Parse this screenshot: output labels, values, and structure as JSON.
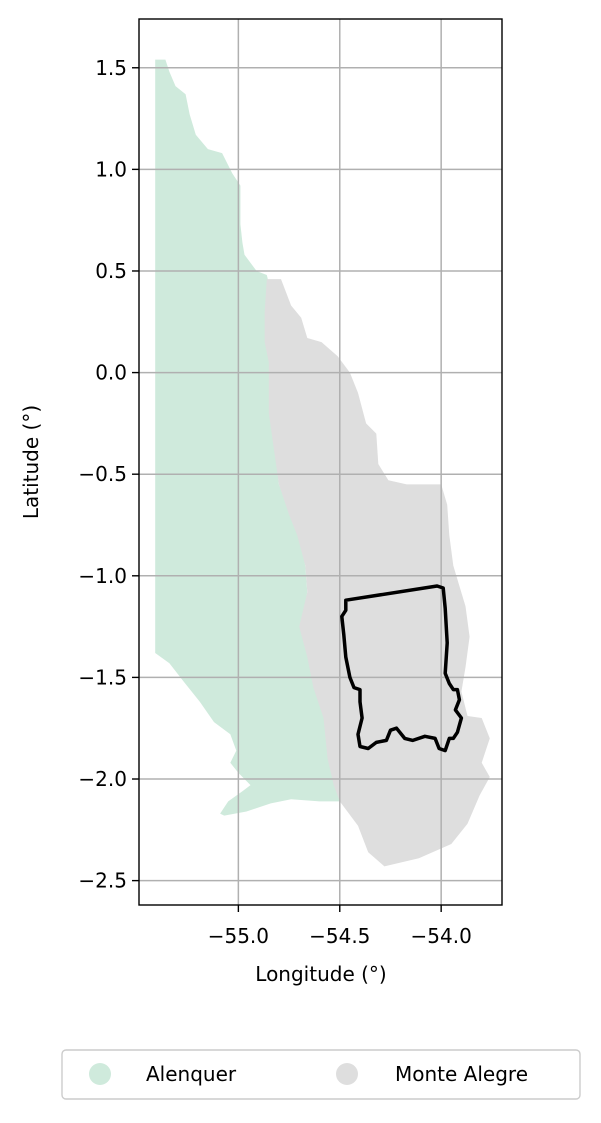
{
  "chart_data": {
    "type": "map",
    "xlabel": "Longitude (°)",
    "ylabel": "Latitude (°)",
    "xlim": [
      -55.49,
      -53.7
    ],
    "ylim": [
      -2.62,
      1.74
    ],
    "grid": true,
    "xticks": [
      {
        "value": -55.0,
        "label": "−55.0"
      },
      {
        "value": -54.5,
        "label": "−54.5"
      },
      {
        "value": -54.0,
        "label": "−54.0"
      }
    ],
    "yticks": [
      {
        "value": 1.5,
        "label": "1.5"
      },
      {
        "value": 1.0,
        "label": "1.0"
      },
      {
        "value": 0.5,
        "label": "0.5"
      },
      {
        "value": 0.0,
        "label": "0.0"
      },
      {
        "value": -0.5,
        "label": "−0.5"
      },
      {
        "value": -1.0,
        "label": "−1.0"
      },
      {
        "value": -1.5,
        "label": "−1.5"
      },
      {
        "value": -2.0,
        "label": "−2.0"
      },
      {
        "value": -2.5,
        "label": "−2.5"
      }
    ],
    "legend_position": "below",
    "regions": [
      {
        "name": "Alenquer",
        "color": "#cfeadc",
        "polygon": [
          [
            -55.41,
            1.54
          ],
          [
            -55.36,
            1.54
          ],
          [
            -55.34,
            1.48
          ],
          [
            -55.31,
            1.41
          ],
          [
            -55.26,
            1.37
          ],
          [
            -55.24,
            1.27
          ],
          [
            -55.21,
            1.17
          ],
          [
            -55.15,
            1.1
          ],
          [
            -55.08,
            1.08
          ],
          [
            -55.03,
            0.98
          ],
          [
            -54.99,
            0.92
          ],
          [
            -54.99,
            0.73
          ],
          [
            -54.98,
            0.64
          ],
          [
            -54.97,
            0.58
          ],
          [
            -54.91,
            0.5
          ],
          [
            -54.86,
            0.48
          ],
          [
            -54.84,
            0.4
          ],
          [
            -54.86,
            0.3
          ],
          [
            -54.86,
            0.15
          ],
          [
            -54.84,
            0.05
          ],
          [
            -54.84,
            -0.2
          ],
          [
            -54.8,
            -0.55
          ],
          [
            -54.74,
            -0.7
          ],
          [
            -54.7,
            -0.8
          ],
          [
            -54.67,
            -0.95
          ],
          [
            -54.66,
            -1.08
          ],
          [
            -54.69,
            -1.25
          ],
          [
            -54.65,
            -1.4
          ],
          [
            -54.61,
            -1.55
          ],
          [
            -54.56,
            -1.7
          ],
          [
            -54.55,
            -1.9
          ],
          [
            -54.52,
            -2.03
          ],
          [
            -54.49,
            -2.11
          ],
          [
            -54.6,
            -2.11
          ],
          [
            -54.74,
            -2.1
          ],
          [
            -54.84,
            -2.12
          ],
          [
            -54.96,
            -2.16
          ],
          [
            -55.07,
            -2.18
          ],
          [
            -55.09,
            -2.17
          ],
          [
            -55.05,
            -2.11
          ],
          [
            -54.98,
            -2.06
          ],
          [
            -54.94,
            -2.03
          ],
          [
            -55.0,
            -1.97
          ],
          [
            -55.04,
            -1.92
          ],
          [
            -55.01,
            -1.86
          ],
          [
            -55.04,
            -1.78
          ],
          [
            -55.12,
            -1.72
          ],
          [
            -55.19,
            -1.62
          ],
          [
            -55.27,
            -1.52
          ],
          [
            -55.34,
            -1.43
          ],
          [
            -55.41,
            -1.38
          ]
        ]
      },
      {
        "name": "Monte Alegre",
        "color": "#dedede",
        "polygon": [
          [
            -54.86,
            0.46
          ],
          [
            -54.79,
            0.46
          ],
          [
            -54.74,
            0.33
          ],
          [
            -54.69,
            0.27
          ],
          [
            -54.66,
            0.17
          ],
          [
            -54.59,
            0.15
          ],
          [
            -54.51,
            0.08
          ],
          [
            -54.45,
            0.0
          ],
          [
            -54.41,
            -0.1
          ],
          [
            -54.37,
            -0.25
          ],
          [
            -54.32,
            -0.3
          ],
          [
            -54.31,
            -0.45
          ],
          [
            -54.26,
            -0.53
          ],
          [
            -54.17,
            -0.55
          ],
          [
            -54.08,
            -0.55
          ],
          [
            -54.0,
            -0.55
          ],
          [
            -53.97,
            -0.65
          ],
          [
            -53.96,
            -0.8
          ],
          [
            -53.94,
            -0.95
          ],
          [
            -53.91,
            -1.05
          ],
          [
            -53.88,
            -1.15
          ],
          [
            -53.86,
            -1.3
          ],
          [
            -53.88,
            -1.45
          ],
          [
            -53.9,
            -1.57
          ],
          [
            -53.87,
            -1.69
          ],
          [
            -53.8,
            -1.7
          ],
          [
            -53.76,
            -1.8
          ],
          [
            -53.8,
            -1.92
          ],
          [
            -53.76,
            -1.99
          ],
          [
            -53.81,
            -2.08
          ],
          [
            -53.87,
            -2.22
          ],
          [
            -53.95,
            -2.32
          ],
          [
            -54.11,
            -2.39
          ],
          [
            -54.28,
            -2.43
          ],
          [
            -54.36,
            -2.36
          ],
          [
            -54.41,
            -2.23
          ],
          [
            -54.5,
            -2.11
          ],
          [
            -54.53,
            -2.03
          ],
          [
            -54.56,
            -1.9
          ],
          [
            -54.58,
            -1.7
          ],
          [
            -54.63,
            -1.55
          ],
          [
            -54.66,
            -1.4
          ],
          [
            -54.7,
            -1.25
          ],
          [
            -54.66,
            -1.08
          ],
          [
            -54.67,
            -0.95
          ],
          [
            -54.71,
            -0.8
          ],
          [
            -54.75,
            -0.7
          ],
          [
            -54.8,
            -0.55
          ],
          [
            -54.85,
            -0.2
          ],
          [
            -54.85,
            0.05
          ],
          [
            -54.87,
            0.15
          ],
          [
            -54.87,
            0.3
          ]
        ]
      }
    ],
    "outline": {
      "polygon": [
        [
          -54.47,
          -1.12
        ],
        [
          -54.02,
          -1.05
        ],
        [
          -53.99,
          -1.06
        ],
        [
          -53.98,
          -1.16
        ],
        [
          -53.97,
          -1.33
        ],
        [
          -53.98,
          -1.48
        ],
        [
          -53.96,
          -1.53
        ],
        [
          -53.94,
          -1.56
        ],
        [
          -53.92,
          -1.56
        ],
        [
          -53.91,
          -1.61
        ],
        [
          -53.93,
          -1.66
        ],
        [
          -53.9,
          -1.7
        ],
        [
          -53.92,
          -1.77
        ],
        [
          -53.94,
          -1.8
        ],
        [
          -53.96,
          -1.8
        ],
        [
          -53.98,
          -1.86
        ],
        [
          -54.01,
          -1.85
        ],
        [
          -54.03,
          -1.8
        ],
        [
          -54.08,
          -1.79
        ],
        [
          -54.14,
          -1.81
        ],
        [
          -54.18,
          -1.8
        ],
        [
          -54.22,
          -1.75
        ],
        [
          -54.25,
          -1.76
        ],
        [
          -54.27,
          -1.81
        ],
        [
          -54.32,
          -1.82
        ],
        [
          -54.36,
          -1.85
        ],
        [
          -54.4,
          -1.84
        ],
        [
          -54.41,
          -1.78
        ],
        [
          -54.39,
          -1.7
        ],
        [
          -54.4,
          -1.62
        ],
        [
          -54.4,
          -1.56
        ],
        [
          -54.43,
          -1.55
        ],
        [
          -54.45,
          -1.5
        ],
        [
          -54.47,
          -1.4
        ],
        [
          -54.48,
          -1.29
        ],
        [
          -54.49,
          -1.2
        ],
        [
          -54.47,
          -1.17
        ]
      ]
    },
    "legend": [
      {
        "label": "Alenquer",
        "color": "#cfeadc"
      },
      {
        "label": "Monte Alegre",
        "color": "#dedede"
      }
    ]
  }
}
